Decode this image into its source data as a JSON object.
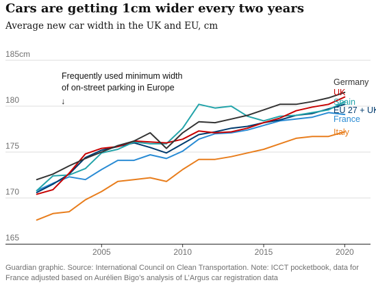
{
  "title": "Cars are getting 1cm wider every two years",
  "subtitle": "Average new car width in the UK and EU, cm",
  "source": "Guardian graphic. Source: International Council on Clean Transportation. Note: ICCT pocketbook, data for France adjusted based on Aurélien Bigo’s analysis of L’Argus car registration data",
  "chart_data": {
    "type": "line",
    "title": "Cars are getting 1cm wider every two years",
    "subtitle": "Average new car width in the UK and EU, cm",
    "xlabel": "",
    "ylabel": "",
    "xlim": [
      2000,
      2021
    ],
    "ylim": [
      165,
      185
    ],
    "x_ticks": [
      "2005",
      "2010",
      "2015",
      "2020"
    ],
    "y_ticks": [
      "185cm",
      "180",
      "175",
      "170",
      "165"
    ],
    "grid": true,
    "annotation": "Frequently used minimum width\nof on-street parking in Europe",
    "annotation_arrow": "↓",
    "x": [
      2001,
      2002,
      2003,
      2004,
      2005,
      2006,
      2007,
      2008,
      2009,
      2010,
      2011,
      2012,
      2013,
      2014,
      2015,
      2016,
      2017,
      2018,
      2019,
      2020
    ],
    "series": [
      {
        "name": "Germany",
        "color": "#333333",
        "values": [
          172.0,
          172.6,
          173.5,
          174.3,
          175.0,
          175.7,
          176.2,
          177.1,
          175.4,
          177.1,
          178.3,
          178.2,
          178.6,
          179.0,
          179.6,
          180.2,
          180.2,
          180.5,
          180.9,
          181.5
        ]
      },
      {
        "name": "UK",
        "color": "#c70000",
        "values": [
          170.4,
          170.9,
          172.7,
          174.8,
          175.4,
          175.6,
          176.2,
          176.1,
          176.0,
          176.4,
          177.3,
          177.1,
          177.2,
          177.6,
          178.2,
          178.7,
          179.5,
          179.9,
          180.2,
          181.0
        ]
      },
      {
        "name": "Spain",
        "color": "#22a3a9",
        "values": [
          170.8,
          172.4,
          172.5,
          173.2,
          174.9,
          175.3,
          176.1,
          175.9,
          175.9,
          177.6,
          180.2,
          179.8,
          180.0,
          178.9,
          178.4,
          178.9,
          179.0,
          179.3,
          179.6,
          180.5
        ]
      },
      {
        "name": "EU 27 + UK",
        "color": "#003b6e",
        "values": [
          170.6,
          171.5,
          172.6,
          174.4,
          175.2,
          175.6,
          176.0,
          175.5,
          174.9,
          175.9,
          176.9,
          177.2,
          177.6,
          177.8,
          178.2,
          178.5,
          179.0,
          179.2,
          179.7,
          180.2
        ]
      },
      {
        "name": "France",
        "color": "#298bd4",
        "values": [
          170.8,
          171.6,
          172.3,
          172.0,
          173.1,
          174.1,
          174.1,
          174.7,
          174.3,
          175.1,
          176.4,
          177.0,
          177.1,
          177.4,
          177.9,
          178.4,
          178.6,
          178.8,
          179.3,
          179.1
        ]
      },
      {
        "name": "Italy",
        "color": "#e87d1c",
        "values": [
          167.6,
          168.3,
          168.5,
          169.8,
          170.7,
          171.8,
          172.0,
          172.2,
          171.8,
          173.1,
          174.2,
          174.2,
          174.5,
          174.9,
          175.3,
          175.9,
          176.5,
          176.7,
          176.7,
          177.2
        ]
      }
    ]
  }
}
